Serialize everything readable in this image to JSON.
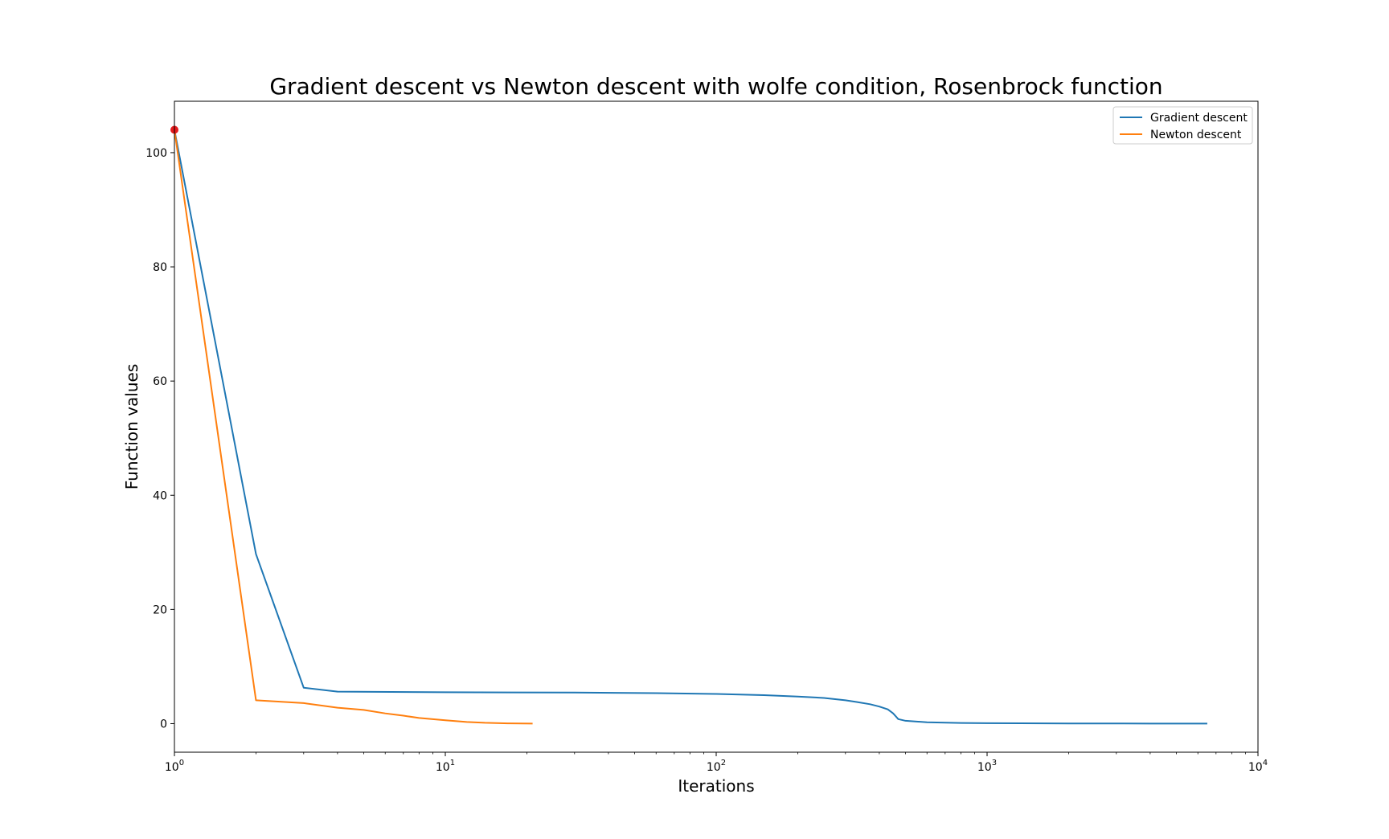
{
  "chart_data": {
    "type": "line",
    "title": "Gradient descent vs Newton descent with wolfe condition, Rosenbrock function",
    "xlabel": "Iterations",
    "ylabel": "Function values",
    "xscale": "log",
    "xlim": [
      1,
      10000
    ],
    "ylim": [
      -5,
      109
    ],
    "xticks": [
      {
        "value": 1,
        "base": "10",
        "exp": "0"
      },
      {
        "value": 10,
        "base": "10",
        "exp": "1"
      },
      {
        "value": 100,
        "base": "10",
        "exp": "2"
      },
      {
        "value": 1000,
        "base": "10",
        "exp": "3"
      },
      {
        "value": 10000,
        "base": "10",
        "exp": "4"
      }
    ],
    "yticks": [
      0,
      20,
      40,
      60,
      80,
      100
    ],
    "grid": false,
    "legend": "top-right",
    "series": [
      {
        "name": "Gradient descent",
        "color": "#1f77b4",
        "points": [
          [
            1,
            104
          ],
          [
            2,
            29.7
          ],
          [
            3,
            6.3
          ],
          [
            4,
            5.6
          ],
          [
            10,
            5.5
          ],
          [
            30,
            5.45
          ],
          [
            60,
            5.35
          ],
          [
            100,
            5.2
          ],
          [
            150,
            5.0
          ],
          [
            200,
            4.75
          ],
          [
            250,
            4.5
          ],
          [
            300,
            4.1
          ],
          [
            330,
            3.8
          ],
          [
            370,
            3.4
          ],
          [
            400,
            3.0
          ],
          [
            430,
            2.5
          ],
          [
            450,
            1.8
          ],
          [
            470,
            0.8
          ],
          [
            500,
            0.5
          ],
          [
            600,
            0.25
          ],
          [
            800,
            0.12
          ],
          [
            1000,
            0.08
          ],
          [
            2000,
            0.04
          ],
          [
            4000,
            0.02
          ],
          [
            6500,
            0.01
          ]
        ]
      },
      {
        "name": "Newton descent",
        "color": "#ff7f0e",
        "points": [
          [
            1,
            104
          ],
          [
            2,
            4.1
          ],
          [
            3,
            3.6
          ],
          [
            4,
            2.8
          ],
          [
            5,
            2.4
          ],
          [
            6,
            1.8
          ],
          [
            7,
            1.4
          ],
          [
            8,
            1.0
          ],
          [
            10,
            0.6
          ],
          [
            12,
            0.3
          ],
          [
            14,
            0.15
          ],
          [
            17,
            0.05
          ],
          [
            21,
            0.02
          ]
        ]
      }
    ],
    "start_marker": {
      "x": 1,
      "y": 104,
      "color": "#e41a1c"
    }
  }
}
